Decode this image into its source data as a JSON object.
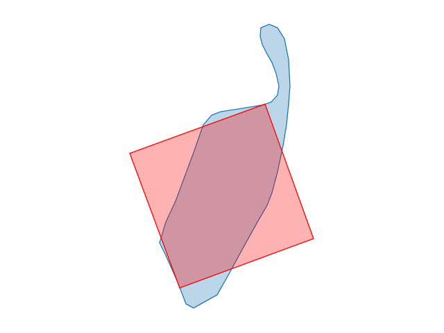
{
  "figure": {
    "background": "#ffffff"
  },
  "shapes": [
    {
      "name": "blue-outline-polygon",
      "shape": "irregular polygon",
      "fill": "#1f77b4",
      "fill_opacity": 0.3,
      "stroke": "#1f77b4"
    },
    {
      "name": "red-rotated-rectangle",
      "shape": "rotated rectangle",
      "fill": "#ff0000",
      "fill_opacity": 0.3,
      "stroke": "#ff0000"
    }
  ]
}
